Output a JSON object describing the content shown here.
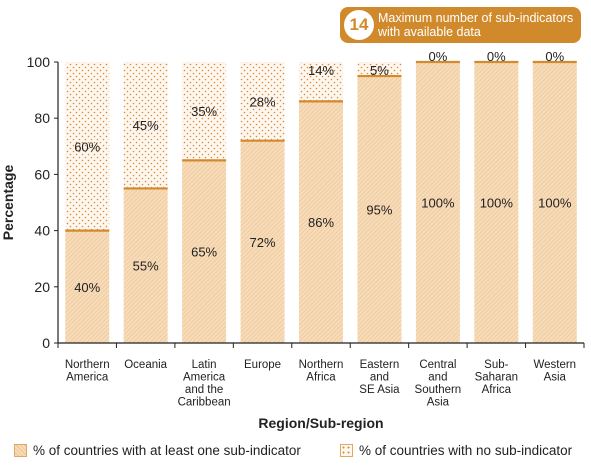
{
  "badge": {
    "number": "14",
    "text": "Maximum number of sub-indicators with available data"
  },
  "chart_data": {
    "type": "bar",
    "stacked": true,
    "categories": [
      [
        "Northern",
        "America"
      ],
      [
        "Oceania"
      ],
      [
        "Latin",
        "America",
        "and the",
        "Caribbean"
      ],
      [
        "Europe"
      ],
      [
        "Northern",
        "Africa"
      ],
      [
        "Eastern",
        "and",
        "SE Asia"
      ],
      [
        "Central",
        "and",
        "Southern",
        "Asia"
      ],
      [
        "Sub-",
        "Saharan",
        "Africa"
      ],
      [
        "Western",
        "Asia"
      ]
    ],
    "series": [
      {
        "name": "% of countries with at least one sub-indicator",
        "values": [
          40,
          55,
          65,
          72,
          86,
          95,
          100,
          100,
          100
        ]
      },
      {
        "name": "% of countries with no sub-indicator",
        "values": [
          60,
          45,
          35,
          28,
          14,
          5,
          0,
          0,
          0
        ]
      }
    ],
    "value_labels_bottom": [
      "40%",
      "55%",
      "65%",
      "72%",
      "86%",
      "95%",
      "100%",
      "100%",
      "100%"
    ],
    "value_labels_top": [
      "60%",
      "45%",
      "35%",
      "28%",
      "14%",
      "5%",
      "0%",
      "0%",
      "0%"
    ],
    "xlabel": "Region/Sub-region",
    "ylabel": "Percentage",
    "ylim": [
      0,
      100
    ],
    "yticks": [
      "0",
      "20",
      "40",
      "60",
      "80",
      "100"
    ],
    "legend_position": "bottom",
    "colors": {
      "solid_fill": "#f6dcba",
      "hatch": "#eec28e",
      "dots": "#d98a3a",
      "separator": "#d4892f",
      "badge": "#d18a2b"
    }
  }
}
